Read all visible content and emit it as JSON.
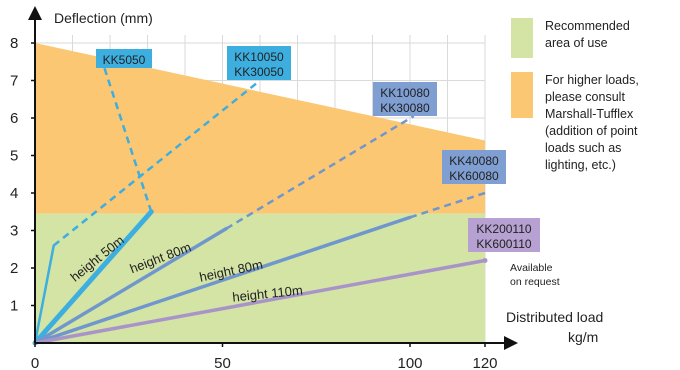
{
  "chart_data": {
    "type": "line",
    "xlabel": [
      "Distributed load",
      "kg/m"
    ],
    "ylabel": "Deflection (mm)",
    "xlim": [
      0,
      120
    ],
    "ylim": [
      0,
      8
    ],
    "x_ticks": [
      "0",
      "50",
      "100",
      "120"
    ],
    "y_ticks": [
      "1",
      "2",
      "3",
      "4",
      "5",
      "6",
      "7",
      "8"
    ],
    "regions": [
      {
        "name": "recommended",
        "y_max": 3.45,
        "color": "#d3e4a5"
      },
      {
        "name": "higher-loads",
        "boundary": {
          "x": [
            0,
            120
          ],
          "y": [
            8.0,
            5.4
          ]
        },
        "color": "#fcc773"
      }
    ],
    "series": [
      {
        "label": [
          "KK5050"
        ],
        "color": "#3daee0",
        "width": 5,
        "solid": {
          "x": [
            0,
            31
          ],
          "y": [
            0,
            3.5
          ]
        },
        "dashed": {
          "x": [
            31,
            17
          ],
          "y": [
            3.5,
            7.8
          ]
        },
        "height_label": "height 50m"
      },
      {
        "label": [
          "KK10050",
          "KK30050"
        ],
        "color": "#3daee0",
        "width": 2.5,
        "solid": {
          "x": [
            0,
            5
          ],
          "y": [
            0,
            2.6
          ]
        },
        "dashed": {
          "x": [
            5,
            60
          ],
          "y": [
            2.6,
            7.0
          ]
        }
      },
      {
        "label": [
          "KK10080",
          "KK30080"
        ],
        "color": "#6f97cd",
        "width": 3.5,
        "solid": {
          "x": [
            0,
            51
          ],
          "y": [
            0,
            3.05
          ]
        },
        "dashed": {
          "x": [
            51,
            101
          ],
          "y": [
            3.05,
            6.05
          ]
        },
        "height_label": "height 80m"
      },
      {
        "label": [
          "KK40080",
          "KK60080"
        ],
        "color": "#6f97cd",
        "width": 3.5,
        "solid": {
          "x": [
            0,
            100
          ],
          "y": [
            0,
            3.35
          ]
        },
        "dashed": {
          "x": [
            100,
            120
          ],
          "y": [
            3.35,
            4.0
          ]
        },
        "height_label": "height 80m"
      },
      {
        "label": [
          "KK200110",
          "KK600110"
        ],
        "color": "#a994c9",
        "width": 3.5,
        "solid": {
          "x": [
            0,
            120
          ],
          "y": [
            0,
            2.2
          ]
        },
        "height_label": "height 110m"
      }
    ],
    "annotations": [
      "Available",
      "on request"
    ],
    "legend": [
      {
        "swatch": "#d3e4a5",
        "text": [
          "Recommended",
          "area of use"
        ]
      },
      {
        "swatch": "#fcc773",
        "text": [
          "For higher loads,",
          "please consult",
          "Marshall-Tufflex",
          "(addition of point",
          "loads such as",
          "lighting, etc.)"
        ]
      }
    ],
    "grid": true
  }
}
